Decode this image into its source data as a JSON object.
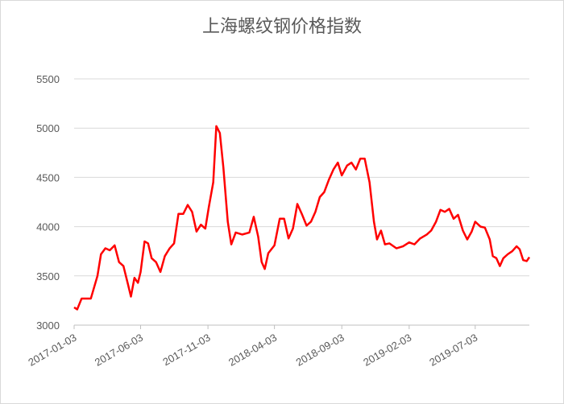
{
  "chart_data": {
    "type": "line",
    "title": "上海螺纹钢价格指数",
    "x": [
      "2017-01-03",
      "2017-01-10",
      "2017-01-20",
      "2017-02-10",
      "2017-02-25",
      "2017-03-05",
      "2017-03-15",
      "2017-03-25",
      "2017-04-05",
      "2017-04-15",
      "2017-04-25",
      "2017-05-05",
      "2017-05-12",
      "2017-05-20",
      "2017-05-28",
      "2017-06-03",
      "2017-06-12",
      "2017-06-20",
      "2017-06-28",
      "2017-07-08",
      "2017-07-18",
      "2017-07-28",
      "2017-08-08",
      "2017-08-18",
      "2017-08-28",
      "2017-09-08",
      "2017-09-18",
      "2017-09-28",
      "2017-10-08",
      "2017-10-18",
      "2017-10-28",
      "2017-11-05",
      "2017-11-15",
      "2017-11-22",
      "2017-11-30",
      "2017-12-08",
      "2017-12-18",
      "2017-12-26",
      "2018-01-05",
      "2018-01-20",
      "2018-02-05",
      "2018-02-15",
      "2018-02-25",
      "2018-03-05",
      "2018-03-12",
      "2018-03-20",
      "2018-04-03",
      "2018-04-15",
      "2018-04-25",
      "2018-05-05",
      "2018-05-15",
      "2018-05-25",
      "2018-06-05",
      "2018-06-15",
      "2018-06-25",
      "2018-07-05",
      "2018-07-15",
      "2018-07-25",
      "2018-08-05",
      "2018-08-15",
      "2018-08-25",
      "2018-09-03",
      "2018-09-15",
      "2018-09-25",
      "2018-10-05",
      "2018-10-15",
      "2018-10-25",
      "2018-11-05",
      "2018-11-15",
      "2018-11-22",
      "2018-12-01",
      "2018-12-10",
      "2018-12-20",
      "2019-01-05",
      "2019-01-20",
      "2019-02-03",
      "2019-02-15",
      "2019-02-28",
      "2019-03-15",
      "2019-03-25",
      "2019-04-05",
      "2019-04-15",
      "2019-04-25",
      "2019-05-05",
      "2019-05-15",
      "2019-05-25",
      "2019-06-05",
      "2019-06-15",
      "2019-06-25",
      "2019-07-03",
      "2019-07-15",
      "2019-07-25",
      "2019-08-05",
      "2019-08-12",
      "2019-08-20",
      "2019-08-28",
      "2019-09-05",
      "2019-09-15",
      "2019-09-25",
      "2019-10-05",
      "2019-10-12",
      "2019-10-20",
      "2019-10-28",
      "2019-11-03"
    ],
    "series": [
      {
        "color": "#ff0000",
        "values": [
          3180,
          3160,
          3270,
          3270,
          3500,
          3720,
          3780,
          3760,
          3810,
          3640,
          3600,
          3420,
          3290,
          3480,
          3430,
          3540,
          3850,
          3830,
          3680,
          3640,
          3540,
          3700,
          3780,
          3830,
          4130,
          4130,
          4220,
          4150,
          3950,
          4020,
          3980,
          4200,
          4450,
          5020,
          4950,
          4600,
          4050,
          3820,
          3940,
          3920,
          3940,
          4100,
          3900,
          3640,
          3570,
          3730,
          3810,
          4080,
          4080,
          3880,
          3980,
          4230,
          4120,
          4010,
          4050,
          4150,
          4300,
          4350,
          4480,
          4580,
          4650,
          4520,
          4620,
          4650,
          4580,
          4690,
          4690,
          4450,
          4050,
          3870,
          3960,
          3820,
          3830,
          3780,
          3800,
          3840,
          3820,
          3880,
          3920,
          3960,
          4050,
          4170,
          4150,
          4180,
          4080,
          4120,
          3960,
          3870,
          3950,
          4050,
          4000,
          3990,
          3870,
          3700,
          3680,
          3600,
          3680,
          3720,
          3750,
          3800,
          3770,
          3660,
          3650,
          3690
        ]
      }
    ],
    "xlim": [
      "2017-01-03",
      "2019-11-03"
    ],
    "xticks": [
      "2017-01-03",
      "2017-06-03",
      "2017-11-03",
      "2018-04-03",
      "2018-09-03",
      "2019-02-03",
      "2019-07-03"
    ],
    "ylim": [
      3000,
      5500
    ],
    "yticks": [
      3000,
      3500,
      4000,
      4500,
      5000,
      5500
    ],
    "grid": true
  }
}
